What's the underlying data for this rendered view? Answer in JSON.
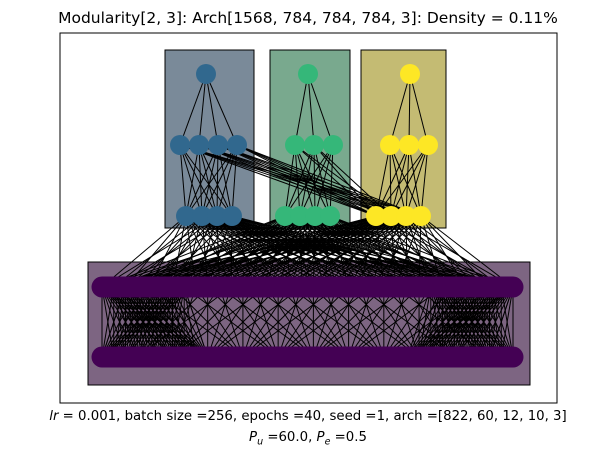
{
  "title": "Modularity[2, 3]: Arch[1568, 784, 784, 784, 3]: Density = 0.11%",
  "caption": {
    "lr_symbol": "lr",
    "line1_rest": " =  0.001, batch size =256, epochs =40, seed =1, arch =[822, 60, 12, 10, 3]",
    "pu_symbol": "P",
    "pu_sub": "u",
    "pu_value": " =60.0, ",
    "pe_symbol": "P",
    "pe_sub": "e",
    "pe_value": " =0.5"
  },
  "colors": {
    "module_1": "#31688e",
    "module_2": "#35b779",
    "module_3": "#fde725",
    "input": "#440154",
    "edge": "#000000",
    "module_1_box": "#7a8a99",
    "module_2_box": "#79a98e",
    "module_3_box": "#c4bb73",
    "input_box": "#7d6582"
  },
  "modules": [
    {
      "color_key": "module_1",
      "layers": [
        1,
        4,
        4
      ]
    },
    {
      "color_key": "module_2",
      "layers": [
        1,
        3,
        4
      ]
    },
    {
      "color_key": "module_3",
      "layers": [
        1,
        3,
        4
      ]
    }
  ],
  "input_layers": 2
}
